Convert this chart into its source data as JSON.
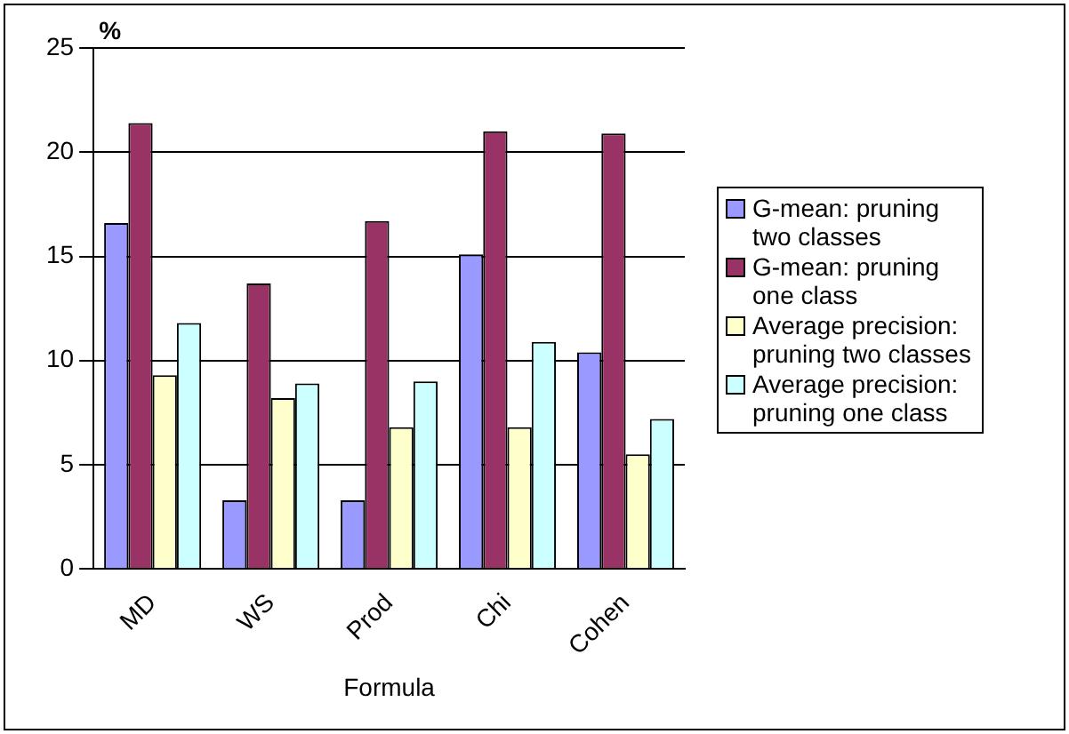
{
  "chart_data": {
    "type": "bar",
    "xlabel": "Formula",
    "ylabel": "%",
    "categories": [
      "MD",
      "WS",
      "Prod",
      "Chi",
      "Cohen"
    ],
    "series": [
      {
        "name": "G-mean: pruning two classes",
        "color": "#9999ff",
        "values": [
          16.6,
          3.3,
          3.3,
          15.1,
          10.4
        ]
      },
      {
        "name": "G-mean: pruning one class",
        "color": "#993366",
        "values": [
          21.4,
          13.7,
          16.7,
          21.0,
          20.9
        ]
      },
      {
        "name": "Average precision: pruning two classes",
        "color": "#ffffcc",
        "values": [
          9.3,
          8.2,
          6.8,
          6.8,
          5.5
        ]
      },
      {
        "name": "Average precision: pruning one class",
        "color": "#ccffff",
        "values": [
          11.8,
          8.9,
          9.0,
          10.9,
          7.2
        ]
      }
    ],
    "ylim": [
      0,
      25
    ],
    "yticks": [
      0,
      5,
      10,
      15,
      20,
      25
    ],
    "grid": "y",
    "legend": "right"
  }
}
